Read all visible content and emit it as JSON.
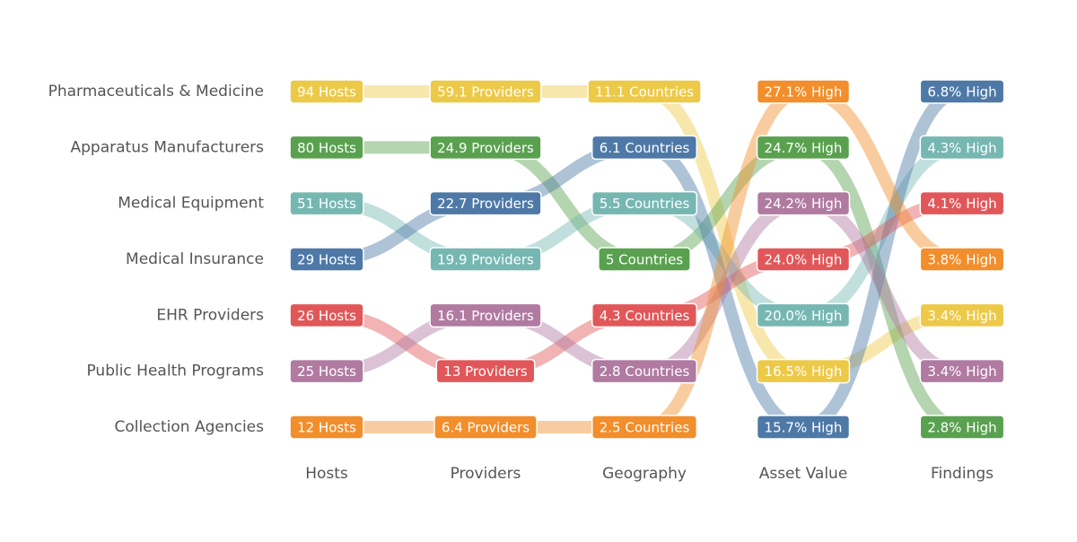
{
  "chart_data": {
    "type": "bump",
    "columns": [
      "Hosts",
      "Providers",
      "Geography",
      "Asset Value",
      "Findings"
    ],
    "series": [
      {
        "name": "Pharmaceuticals & Medicine",
        "color": "#edc948",
        "values": [
          94,
          59.1,
          11.1,
          16.5,
          3.4
        ],
        "value_labels": [
          "94 Hosts",
          "59.1 Providers",
          "11.1 Countries",
          "16.5% High",
          "3.4% High"
        ]
      },
      {
        "name": "Apparatus Manufacturers",
        "color": "#59a14f",
        "values": [
          80,
          24.9,
          5,
          24.7,
          2.8
        ],
        "value_labels": [
          "80 Hosts",
          "24.9 Providers",
          "5 Countries",
          "24.7% High",
          "2.8% High"
        ]
      },
      {
        "name": "Medical Equipment",
        "color": "#76b7b2",
        "values": [
          51,
          19.9,
          5.5,
          20.0,
          4.3
        ],
        "value_labels": [
          "51 Hosts",
          "19.9 Providers",
          "5.5 Countries",
          "20.0% High",
          "4.3% High"
        ]
      },
      {
        "name": "Medical Insurance",
        "color": "#4e79a7",
        "values": [
          29,
          22.7,
          6.1,
          15.7,
          6.8
        ],
        "value_labels": [
          "29 Hosts",
          "22.7 Providers",
          "6.1 Countries",
          "15.7% High",
          "6.8% High"
        ]
      },
      {
        "name": "EHR Providers",
        "color": "#e15759",
        "values": [
          26,
          13,
          4.3,
          24.0,
          4.1
        ],
        "value_labels": [
          "26 Hosts",
          "13 Providers",
          "4.3 Countries",
          "24.0% High",
          "4.1% High"
        ]
      },
      {
        "name": "Public Health Programs",
        "color": "#b07aa1",
        "values": [
          25,
          16.1,
          2.8,
          24.2,
          3.4
        ],
        "value_labels": [
          "25 Hosts",
          "16.1 Providers",
          "2.8 Countries",
          "24.2% High",
          "3.4% High"
        ]
      },
      {
        "name": "Collection Agencies",
        "color": "#f28e2b",
        "values": [
          12,
          6.4,
          2.5,
          27.1,
          3.8
        ],
        "value_labels": [
          "12 Hosts",
          "6.4 Providers",
          "2.5 Countries",
          "27.1% High",
          "3.8% High"
        ]
      }
    ]
  }
}
